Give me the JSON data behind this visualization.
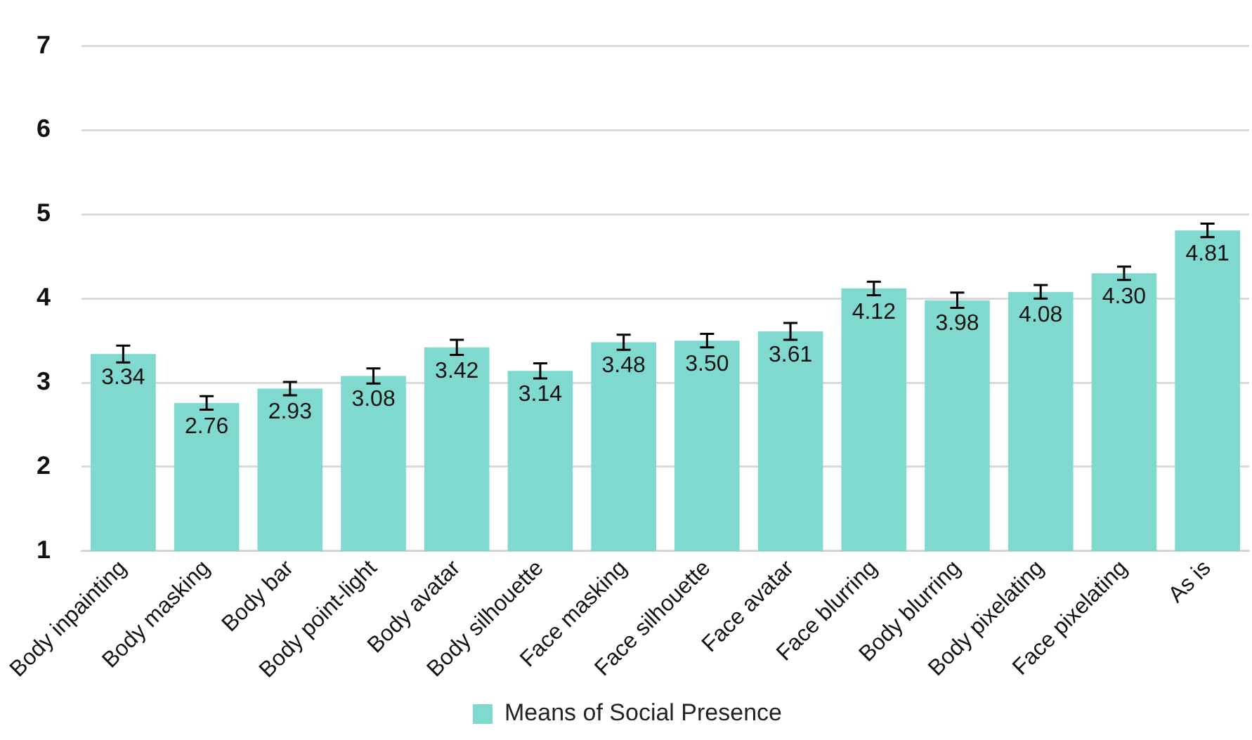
{
  "chart_data": {
    "type": "bar",
    "categories": [
      "Body inpainting",
      "Body masking",
      "Body bar",
      "Body point-light",
      "Body avatar",
      "Body silhouette",
      "Face masking",
      "Face silhouette",
      "Face avatar",
      "Face blurring",
      "Body blurring",
      "Body pixelating",
      "Face pixelating",
      "As is"
    ],
    "series": [
      {
        "name": "Means of Social Presence",
        "color": "#7fd9cf",
        "values": [
          3.34,
          2.76,
          2.93,
          3.08,
          3.42,
          3.14,
          3.48,
          3.5,
          3.61,
          4.12,
          3.98,
          4.08,
          4.3,
          4.81
        ],
        "errors": [
          0.1,
          0.08,
          0.08,
          0.09,
          0.09,
          0.09,
          0.09,
          0.08,
          0.1,
          0.08,
          0.09,
          0.08,
          0.08,
          0.08
        ],
        "value_labels": [
          "3.34",
          "2.76",
          "2.93",
          "3.08",
          "3.42",
          "3.14",
          "3.48",
          "3.50",
          "3.61",
          "4.12",
          "3.98",
          "4.08",
          "4.30",
          "4.81"
        ]
      }
    ],
    "ylim": [
      1,
      7
    ],
    "yticks": [
      1,
      2,
      3,
      4,
      5,
      6,
      7
    ],
    "grid": "y",
    "legend": "bottom"
  }
}
